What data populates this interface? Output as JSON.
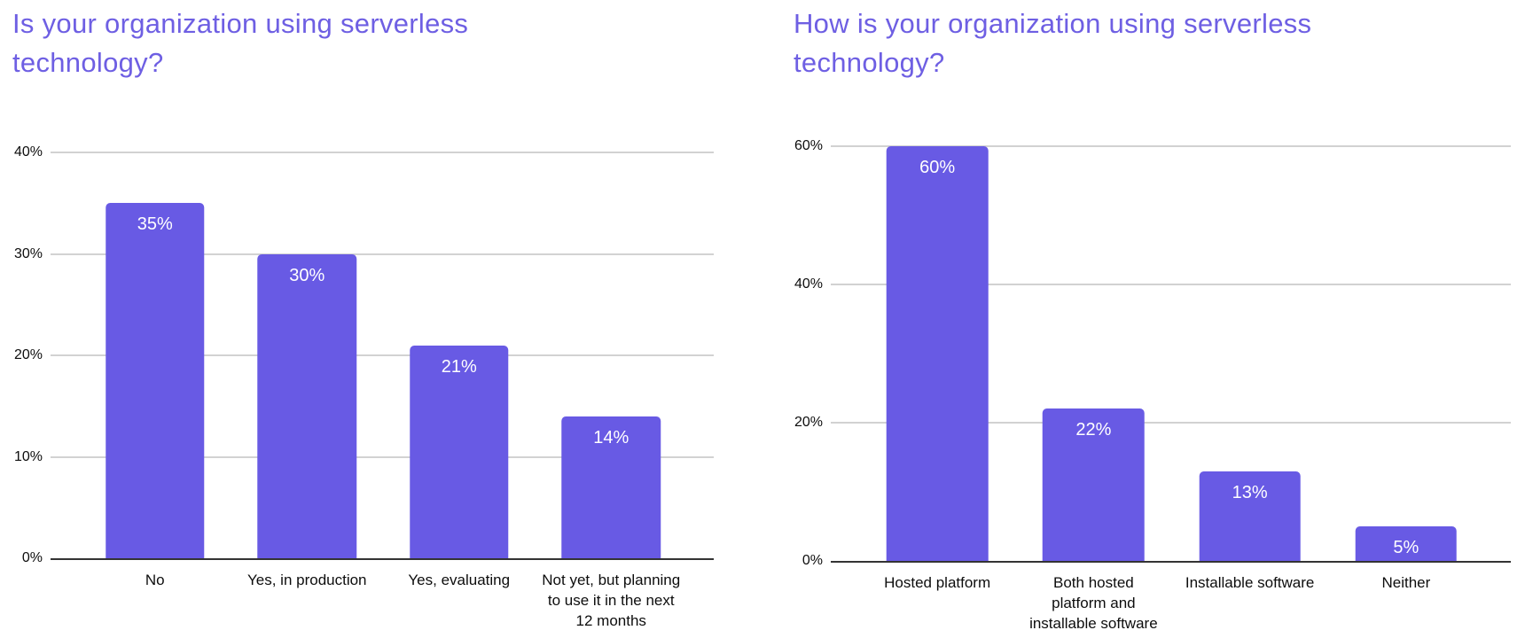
{
  "style": {
    "background": "#ffffff",
    "title_color": "#6e5fe3",
    "bar_color": "#685ae4",
    "gridline_color": "#d2d2d2",
    "axis_color": "#333333",
    "tick_label_color": "#0d0d0d",
    "category_label_color": "#0d0d0d",
    "value_label_color": "#ffffff"
  },
  "chart_data": [
    {
      "type": "bar",
      "title": "Is your organization using serverless\ntechnology?",
      "categories": [
        "No",
        "Yes, in production",
        "Yes, evaluating",
        "Not yet, but planning to use it in the next 12 months"
      ],
      "category_labels": [
        "No",
        "Yes, in production",
        "Yes, evaluating",
        "Not yet, but planning\nto use it in the next\n12 months"
      ],
      "values": [
        35,
        30,
        21,
        14
      ],
      "value_labels": [
        "35%",
        "30%",
        "21%",
        "14%"
      ],
      "xlabel": "",
      "ylabel": "",
      "ylim": [
        0,
        40
      ],
      "y_ticks": [
        "0%",
        "10%",
        "20%",
        "30%",
        "40%"
      ],
      "grid": "horizontal",
      "legend": "none"
    },
    {
      "type": "bar",
      "title": "How is your organization using serverless\ntechnology?",
      "categories": [
        "Hosted platform",
        "Both hosted platform and installable software",
        "Installable software",
        "Neither"
      ],
      "category_labels": [
        "Hosted platform",
        "Both hosted\nplatform and\ninstallable software",
        "Installable software",
        "Neither"
      ],
      "values": [
        60,
        22,
        13,
        5
      ],
      "value_labels": [
        "60%",
        "22%",
        "13%",
        "5%"
      ],
      "xlabel": "",
      "ylabel": "",
      "ylim": [
        0,
        60
      ],
      "y_ticks": [
        "0%",
        "20%",
        "40%",
        "60%"
      ],
      "grid": "horizontal",
      "legend": "none"
    }
  ]
}
